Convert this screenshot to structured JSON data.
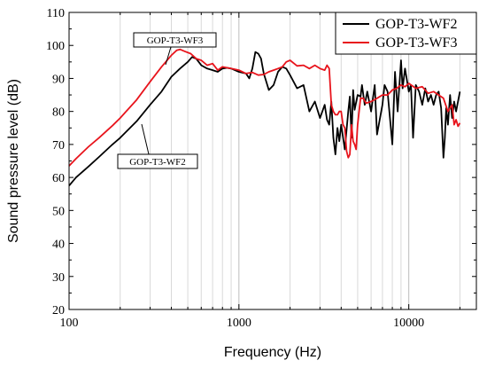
{
  "chart_data": {
    "type": "line",
    "xlabel": "Frequency (Hz)",
    "ylabel": "Sound pressure level (dB)",
    "xscale": "log",
    "xlim": [
      100,
      25000
    ],
    "ylim": [
      20,
      110
    ],
    "xticks": [
      100,
      1000,
      10000
    ],
    "xtick_labels": [
      "100",
      "1000",
      "10000"
    ],
    "yticks": [
      20,
      30,
      40,
      50,
      60,
      70,
      80,
      90,
      100,
      110
    ],
    "ytick_labels": [
      "20",
      "30",
      "40",
      "50",
      "60",
      "70",
      "80",
      "90",
      "100",
      "110"
    ],
    "grid": "log-minor vertical",
    "legend": {
      "placement": "top-right",
      "entries": [
        "GOP-T3-WF2",
        "GOP-T3-WF3"
      ]
    },
    "annotations": [
      {
        "text": "GOP-T3-WF3",
        "points_to": "GOP-T3-WF3"
      },
      {
        "text": "GOP-T3-WF2",
        "points_to": "GOP-T3-WF2"
      }
    ],
    "series": [
      {
        "name": "GOP-T3-WF2",
        "color": "#000000",
        "x": [
          100,
          110,
          130,
          150,
          180,
          200,
          250,
          300,
          350,
          400,
          450,
          500,
          530,
          560,
          600,
          650,
          700,
          750,
          800,
          850,
          900,
          1000,
          1100,
          1150,
          1200,
          1250,
          1300,
          1350,
          1400,
          1500,
          1600,
          1700,
          1800,
          1900,
          2000,
          2200,
          2400,
          2600,
          2800,
          3000,
          3200,
          3300,
          3400,
          3500,
          3600,
          3700,
          3800,
          3900,
          4000,
          4200,
          4400,
          4500,
          4600,
          4700,
          4800,
          5000,
          5200,
          5300,
          5500,
          5700,
          6000,
          6300,
          6500,
          7000,
          7200,
          7500,
          8000,
          8300,
          8600,
          9000,
          9200,
          9500,
          10000,
          10300,
          10600,
          11000,
          11500,
          12000,
          12500,
          13000,
          13500,
          14000,
          14500,
          15000,
          15500,
          16000,
          16300,
          16600,
          17000,
          17500,
          18000,
          18500,
          19000,
          20000
        ],
        "y": [
          57.5,
          60,
          63.3,
          66.2,
          70,
          72,
          77,
          82,
          86,
          90.5,
          93,
          95,
          96.5,
          96,
          94,
          93,
          92.5,
          92,
          93,
          93.2,
          93,
          92,
          91.5,
          90,
          93,
          98,
          97.5,
          96,
          91.5,
          86.5,
          88,
          92,
          93.5,
          93,
          91,
          87,
          88,
          80,
          83,
          78,
          82,
          77.5,
          76,
          83,
          72,
          67,
          75,
          71,
          76,
          68.5,
          80,
          84.5,
          72,
          86.5,
          80.5,
          85,
          84.5,
          88,
          82,
          86,
          80,
          88,
          73,
          82,
          88,
          86,
          70,
          92,
          80,
          95.5,
          87,
          93,
          86,
          88,
          72,
          88,
          86,
          82,
          87,
          83,
          85,
          82,
          85,
          86,
          81,
          66,
          72,
          81,
          76,
          85,
          78,
          83,
          80,
          86
        ]
      },
      {
        "name": "GOP-T3-WF3",
        "color": "#e8141c",
        "x": [
          100,
          110,
          130,
          150,
          180,
          200,
          250,
          300,
          350,
          400,
          430,
          450,
          480,
          520,
          560,
          600,
          650,
          700,
          750,
          800,
          900,
          1000,
          1100,
          1200,
          1300,
          1400,
          1500,
          1600,
          1700,
          1800,
          1900,
          2000,
          2200,
          2400,
          2600,
          2800,
          3000,
          3200,
          3300,
          3400,
          3500,
          3600,
          3700,
          3800,
          3900,
          4000,
          4100,
          4200,
          4300,
          4400,
          4500,
          4600,
          4700,
          4800,
          4900,
          5000,
          5200,
          5400,
          5600,
          6000,
          6500,
          7000,
          7500,
          8000,
          8500,
          9000,
          9500,
          10000,
          11000,
          12000,
          13000,
          14000,
          15000,
          16000,
          17000,
          18000,
          18500,
          19000,
          19500,
          20000
        ],
        "y": [
          63.5,
          65.7,
          69.3,
          72,
          75.7,
          78,
          83.5,
          89,
          93.5,
          97,
          98.5,
          98.8,
          98.2,
          97.5,
          96,
          95.5,
          94,
          94.5,
          92.5,
          93.5,
          93,
          92.5,
          91.5,
          91.8,
          91,
          91.2,
          92,
          92.5,
          93,
          93.5,
          95,
          95.5,
          93.8,
          94,
          93,
          94,
          93,
          92.5,
          94,
          93,
          82,
          80,
          79,
          79,
          80,
          80,
          76,
          75,
          68,
          66,
          67,
          76,
          71,
          70,
          68.5,
          76,
          84,
          84,
          82.5,
          83,
          84,
          85,
          85,
          86.5,
          87,
          88,
          87.5,
          88.5,
          87,
          87.5,
          85.5,
          86,
          85,
          84,
          80,
          82,
          76,
          77.5,
          75.5,
          76.5
        ]
      }
    ]
  }
}
